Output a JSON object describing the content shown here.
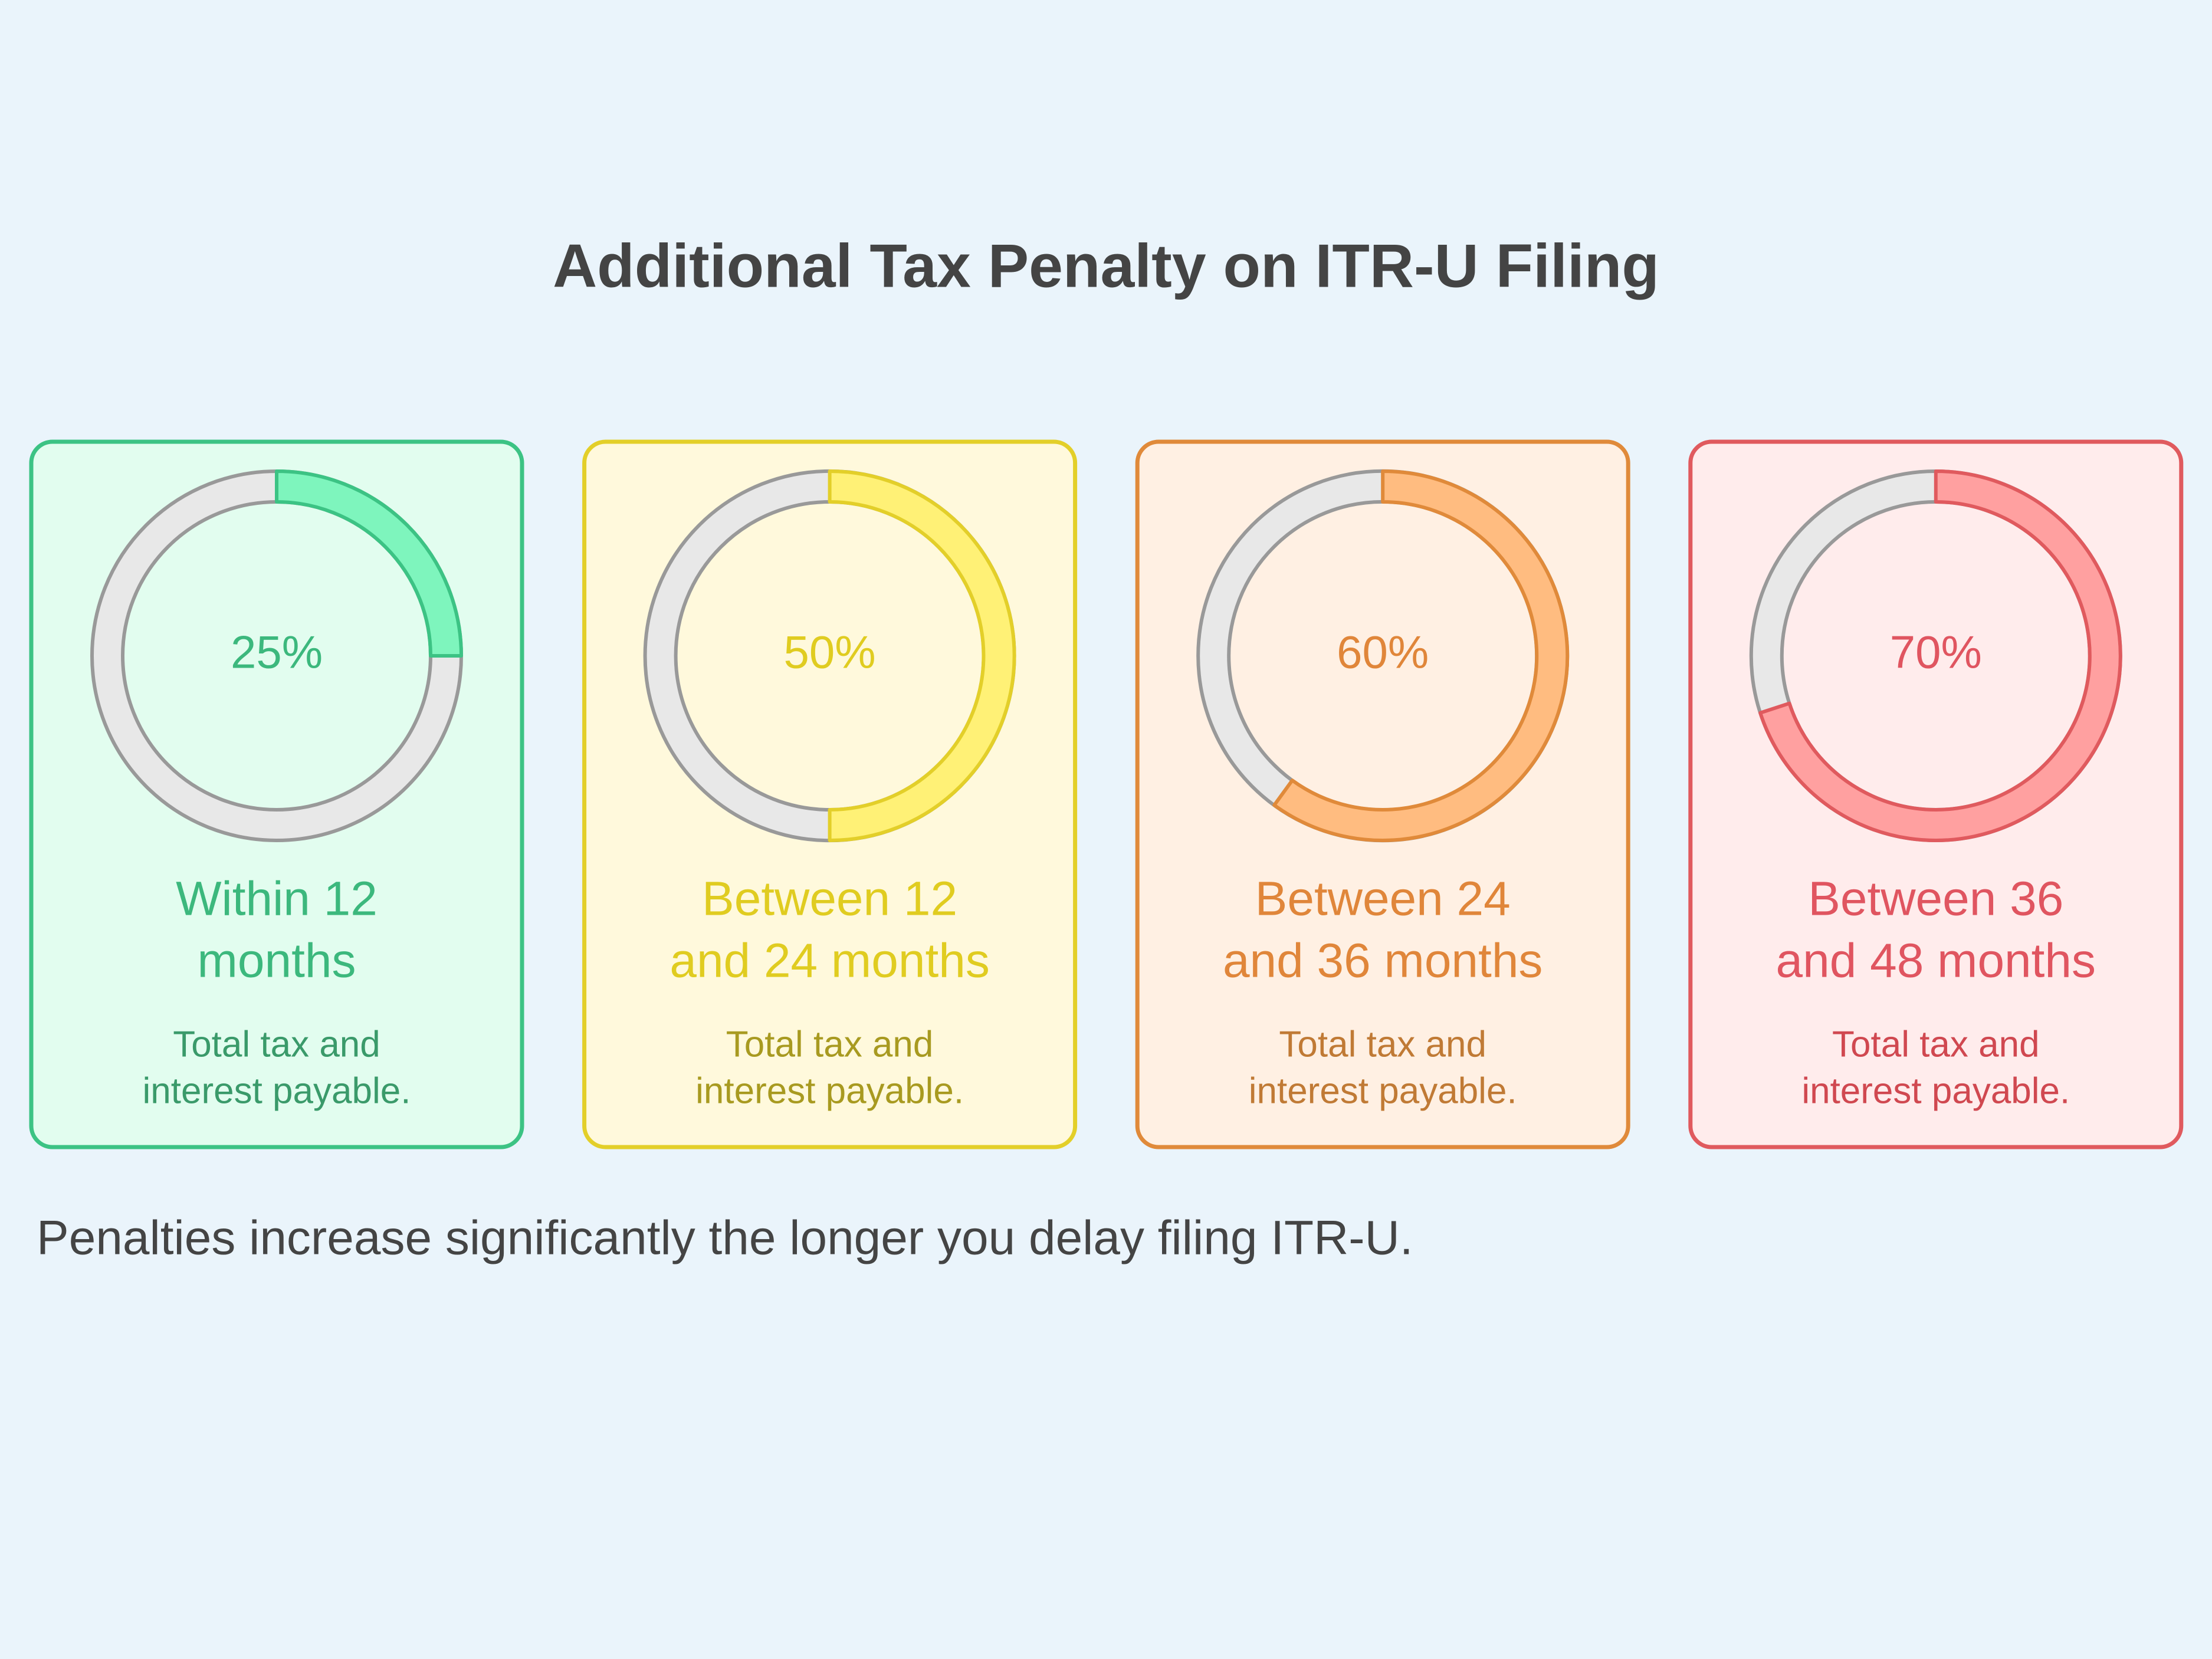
{
  "title": "Additional Tax Penalty on ITR-U Filing",
  "cards": [
    {
      "value": 25,
      "value_label": "25%",
      "label_lines": [
        "Within 12",
        "months"
      ],
      "description_lines": [
        "Total tax and",
        "interest payable."
      ],
      "color": "#3cc384",
      "background": "#e2fdef",
      "fill": "#7ef5bd",
      "text_color": "#3cb87d",
      "description_color": "#3a9a6a"
    },
    {
      "value": 50,
      "value_label": "50%",
      "label_lines": [
        "Between 12",
        "and 24 months"
      ],
      "description_lines": [
        "Total tax and",
        "interest payable."
      ],
      "color": "#e3cf29",
      "background": "#fff9dc",
      "fill": "#fff176",
      "text_color": "#e0cc20",
      "description_color": "#a89a20"
    },
    {
      "value": 60,
      "value_label": "60%",
      "label_lines": [
        "Between 24",
        "and 36 months"
      ],
      "description_lines": [
        "Total tax and",
        "interest payable."
      ],
      "color": "#e08a3a",
      "background": "#fff0e3",
      "fill": "#ffbc80",
      "text_color": "#e0863a",
      "description_color": "#c07a35"
    },
    {
      "value": 70,
      "value_label": "70%",
      "label_lines": [
        "Between 36",
        "and 48 months"
      ],
      "description_lines": [
        "Total tax and",
        "interest payable."
      ],
      "color": "#e05a5e",
      "background": "#ffecec",
      "fill": "#ffa0a0",
      "text_color": "#e05560",
      "description_color": "#d04850"
    }
  ],
  "footer": "Penalties increase significantly the longer you delay filing ITR-U."
}
